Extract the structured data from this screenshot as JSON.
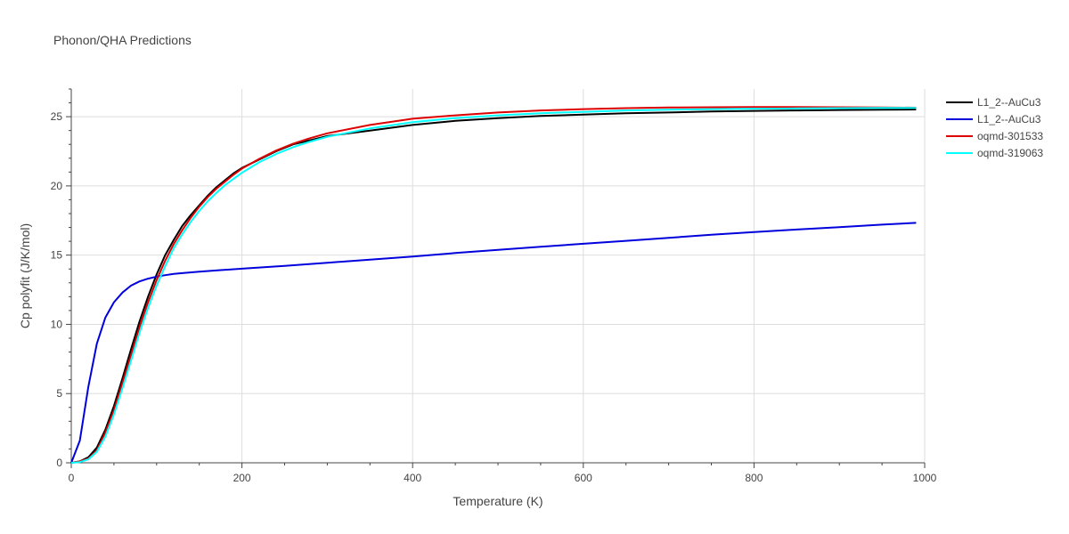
{
  "chart_data": {
    "type": "line",
    "title": "Phonon/QHA Predictions",
    "xlabel": "Temperature (K)",
    "ylabel": "Cp polyfit (J/K/mol)",
    "xlim": [
      0,
      1000
    ],
    "ylim": [
      0,
      27
    ],
    "xticks": [
      0,
      200,
      400,
      600,
      800,
      1000
    ],
    "yticks": [
      0,
      5,
      10,
      15,
      20,
      25
    ],
    "grid": true,
    "legend_position": "top-right",
    "series": [
      {
        "name": "L1_2--AuCu3",
        "color": "#000000",
        "x": [
          0,
          10,
          20,
          30,
          40,
          50,
          60,
          70,
          80,
          90,
          100,
          110,
          120,
          130,
          140,
          150,
          160,
          170,
          180,
          190,
          200,
          220,
          240,
          260,
          280,
          300,
          350,
          400,
          450,
          500,
          550,
          600,
          650,
          700,
          750,
          800,
          850,
          900,
          950,
          990
        ],
        "y": [
          0,
          0.1,
          0.4,
          1.1,
          2.4,
          4.1,
          6.1,
          8.2,
          10.2,
          12.0,
          13.6,
          15.0,
          16.1,
          17.1,
          17.9,
          18.6,
          19.3,
          19.9,
          20.4,
          20.9,
          21.3,
          21.9,
          22.5,
          23.0,
          23.3,
          23.6,
          24.0,
          24.4,
          24.7,
          24.9,
          25.05,
          25.15,
          25.25,
          25.3,
          25.38,
          25.42,
          25.45,
          25.48,
          25.5,
          25.52
        ]
      },
      {
        "name": "L1_2--AuCu3",
        "color": "#0000dd",
        "x": [
          0,
          10,
          20,
          30,
          40,
          50,
          60,
          70,
          80,
          90,
          100,
          110,
          120,
          130,
          150,
          175,
          200,
          250,
          300,
          350,
          400,
          450,
          500,
          550,
          600,
          650,
          700,
          750,
          800,
          850,
          900,
          950,
          990
        ],
        "y": [
          0,
          1.6,
          5.5,
          8.6,
          10.5,
          11.6,
          12.3,
          12.8,
          13.1,
          13.3,
          13.45,
          13.55,
          13.65,
          13.7,
          13.8,
          13.92,
          14.02,
          14.22,
          14.45,
          14.67,
          14.9,
          15.15,
          15.38,
          15.6,
          15.82,
          16.03,
          16.25,
          16.47,
          16.67,
          16.85,
          17.02,
          17.2,
          17.33
        ]
      },
      {
        "name": "oqmd-301533",
        "color": "#dd0000",
        "x": [
          0,
          10,
          20,
          30,
          40,
          50,
          60,
          70,
          80,
          90,
          100,
          110,
          120,
          130,
          140,
          150,
          160,
          170,
          180,
          190,
          200,
          220,
          240,
          260,
          280,
          300,
          350,
          400,
          450,
          500,
          550,
          600,
          650,
          700,
          750,
          800,
          850,
          900,
          950,
          990
        ],
        "y": [
          0,
          0.1,
          0.3,
          0.9,
          2.2,
          3.8,
          5.8,
          7.8,
          9.8,
          11.6,
          13.2,
          14.6,
          15.8,
          16.8,
          17.7,
          18.5,
          19.2,
          19.8,
          20.3,
          20.8,
          21.25,
          21.95,
          22.55,
          23.05,
          23.45,
          23.8,
          24.4,
          24.85,
          25.1,
          25.3,
          25.45,
          25.55,
          25.62,
          25.66,
          25.68,
          25.7,
          25.7,
          25.68,
          25.66,
          25.65
        ]
      },
      {
        "name": "oqmd-319063",
        "color": "#00ffff",
        "x": [
          0,
          10,
          20,
          30,
          40,
          50,
          60,
          70,
          80,
          90,
          100,
          110,
          120,
          130,
          140,
          150,
          160,
          170,
          180,
          190,
          200,
          220,
          240,
          260,
          280,
          300,
          350,
          400,
          450,
          500,
          550,
          600,
          650,
          700,
          750,
          800,
          850,
          900,
          950,
          990
        ],
        "y": [
          0,
          0.05,
          0.25,
          0.8,
          1.9,
          3.5,
          5.4,
          7.4,
          9.4,
          11.2,
          12.8,
          14.2,
          15.5,
          16.5,
          17.4,
          18.2,
          18.9,
          19.5,
          20.05,
          20.5,
          20.95,
          21.7,
          22.3,
          22.8,
          23.2,
          23.55,
          24.15,
          24.6,
          24.9,
          25.1,
          25.25,
          25.35,
          25.45,
          25.5,
          25.55,
          25.58,
          25.6,
          25.62,
          25.63,
          25.64
        ]
      }
    ]
  }
}
